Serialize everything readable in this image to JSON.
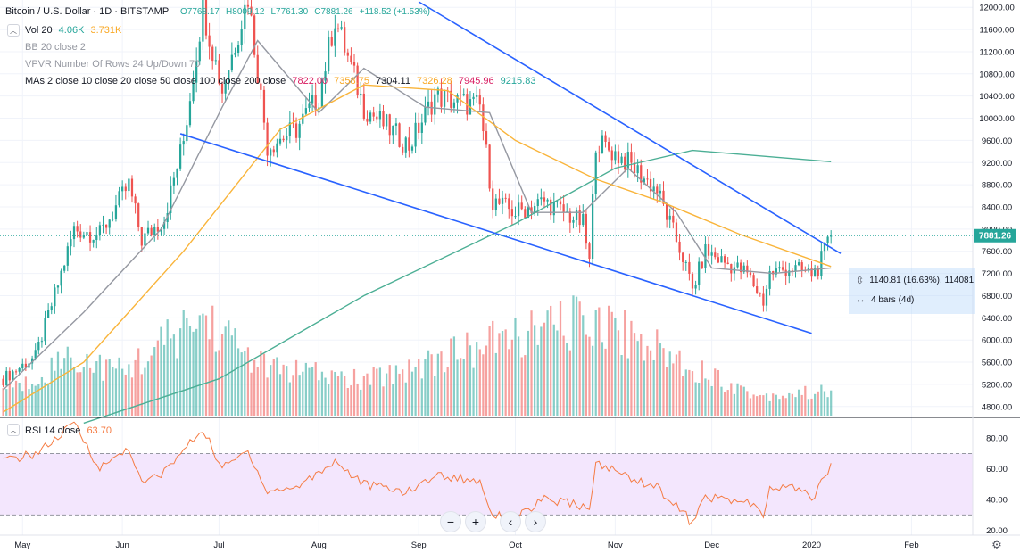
{
  "header": {
    "symbol": "Bitcoin / U.S. Dollar · 1D · BITSTAMP",
    "open": "O7768.17",
    "high": "H8009.12",
    "low": "L7761.30",
    "close": "C7881.26",
    "change": "+118.52 (+1.53%)"
  },
  "indicators": {
    "vol": {
      "label": "Vol 20",
      "v1": "4.06K",
      "v2": "3.731K"
    },
    "bb": {
      "label": "BB 20 close 2"
    },
    "vpvr": {
      "label": "VPVR Number Of Rows 24 Up/Down 70"
    },
    "mas": {
      "label": "MAs 2 close 10 close 20 close 50 close 100 close 200 close",
      "values": [
        "7822.00",
        "7358.75",
        "7304.11",
        "7326.28",
        "7945.96",
        "9215.83"
      ]
    },
    "rsi": {
      "label": "RSI 14 close",
      "value": "63.70"
    }
  },
  "price_axis": {
    "ticks": [
      "12000.00",
      "11600.00",
      "11200.00",
      "10800.00",
      "10400.00",
      "10000.00",
      "9600.00",
      "9200.00",
      "8800.00",
      "8400.00",
      "8000.00",
      "7600.00",
      "7200.00",
      "6800.00",
      "6400.00",
      "6000.00",
      "5600.00",
      "5200.00",
      "4800.00"
    ],
    "last_price": "7881.26"
  },
  "rsi_axis": {
    "ticks": [
      "80.00",
      "60.00",
      "40.00",
      "20.00"
    ]
  },
  "time_axis": {
    "ticks": [
      "May",
      "Jun",
      "Jul",
      "Aug",
      "Sep",
      "Oct",
      "Nov",
      "Dec",
      "2020",
      "Feb"
    ]
  },
  "measure": {
    "line1": "1140.81 (16.63%), 114081",
    "line2": "4 bars (4d)"
  },
  "nav": {
    "zoom_out": "−",
    "zoom_in": "+",
    "back": "‹",
    "forward": "›"
  },
  "colors": {
    "up": "#26a69a",
    "down": "#ef5350",
    "trend": "#2962ff",
    "ma_gray": "#9598a1",
    "ma_orange": "#f9b43a",
    "ma_teal": "#4caf95",
    "rsi": "#f57c44",
    "rsi_band": "#f3e6fd"
  },
  "chart_data": {
    "type": "candlestick",
    "symbol": "Bitcoin / U.S. Dollar",
    "interval": "1D",
    "x_range": [
      "2019-04-24",
      "2020-02-20"
    ],
    "ylim": [
      4700,
      12100
    ],
    "last_close": 7881.26,
    "price_path": [
      {
        "date": "2019-04-25",
        "close": 5300
      },
      {
        "date": "2019-05-05",
        "close": 5700
      },
      {
        "date": "2019-05-12",
        "close": 7000
      },
      {
        "date": "2019-05-17",
        "close": 8000
      },
      {
        "date": "2019-05-25",
        "close": 7900
      },
      {
        "date": "2019-06-03",
        "close": 8800
      },
      {
        "date": "2019-06-07",
        "close": 7800
      },
      {
        "date": "2019-06-14",
        "close": 8200
      },
      {
        "date": "2019-06-20",
        "close": 9600
      },
      {
        "date": "2019-06-26",
        "close": 12000
      },
      {
        "date": "2019-07-02",
        "close": 10500
      },
      {
        "date": "2019-07-10",
        "close": 12200
      },
      {
        "date": "2019-07-16",
        "close": 9500
      },
      {
        "date": "2019-07-25",
        "close": 9800
      },
      {
        "date": "2019-08-01",
        "close": 10400
      },
      {
        "date": "2019-08-06",
        "close": 11800
      },
      {
        "date": "2019-08-15",
        "close": 10200
      },
      {
        "date": "2019-08-29",
        "close": 9500
      },
      {
        "date": "2019-09-06",
        "close": 10400
      },
      {
        "date": "2019-09-20",
        "close": 10200
      },
      {
        "date": "2019-09-24",
        "close": 8500
      },
      {
        "date": "2019-10-01",
        "close": 8300
      },
      {
        "date": "2019-10-10",
        "close": 8500
      },
      {
        "date": "2019-10-22",
        "close": 8100
      },
      {
        "date": "2019-10-24",
        "close": 7400
      },
      {
        "date": "2019-10-26",
        "close": 9600
      },
      {
        "date": "2019-11-05",
        "close": 9200
      },
      {
        "date": "2019-11-14",
        "close": 8700
      },
      {
        "date": "2019-11-22",
        "close": 7500
      },
      {
        "date": "2019-11-25",
        "close": 6900
      },
      {
        "date": "2019-11-29",
        "close": 7600
      },
      {
        "date": "2019-12-05",
        "close": 7400
      },
      {
        "date": "2019-12-12",
        "close": 7200
      },
      {
        "date": "2019-12-17",
        "close": 6700
      },
      {
        "date": "2019-12-19",
        "close": 7200
      },
      {
        "date": "2019-12-25",
        "close": 7300
      },
      {
        "date": "2020-01-01",
        "close": 7200
      },
      {
        "date": "2020-01-03",
        "close": 7300
      },
      {
        "date": "2020-01-07",
        "close": 7881
      }
    ],
    "moving_averages": [
      {
        "period": 20,
        "path": [
          {
            "date": "2019-04-25",
            "value": 5100
          },
          {
            "date": "2019-05-20",
            "value": 6500
          },
          {
            "date": "2019-06-13",
            "value": 8000
          },
          {
            "date": "2019-07-02",
            "value": 10200
          },
          {
            "date": "2019-07-13",
            "value": 11400
          },
          {
            "date": "2019-08-01",
            "value": 10100
          },
          {
            "date": "2019-08-15",
            "value": 10900
          },
          {
            "date": "2019-09-03",
            "value": 10200
          },
          {
            "date": "2019-09-23",
            "value": 10100
          },
          {
            "date": "2019-10-06",
            "value": 8300
          },
          {
            "date": "2019-10-22",
            "value": 8300
          },
          {
            "date": "2019-11-05",
            "value": 9100
          },
          {
            "date": "2019-11-20",
            "value": 8300
          },
          {
            "date": "2019-12-01",
            "value": 7300
          },
          {
            "date": "2019-12-20",
            "value": 7200
          },
          {
            "date": "2020-01-07",
            "value": 7300
          }
        ]
      },
      {
        "period": 50,
        "path": [
          {
            "date": "2019-04-25",
            "value": 4700
          },
          {
            "date": "2019-05-20",
            "value": 5600
          },
          {
            "date": "2019-06-20",
            "value": 7600
          },
          {
            "date": "2019-07-20",
            "value": 9800
          },
          {
            "date": "2019-08-15",
            "value": 10600
          },
          {
            "date": "2019-09-10",
            "value": 10500
          },
          {
            "date": "2019-10-01",
            "value": 9600
          },
          {
            "date": "2019-10-26",
            "value": 8900
          },
          {
            "date": "2019-11-15",
            "value": 8500
          },
          {
            "date": "2019-12-10",
            "value": 7900
          },
          {
            "date": "2020-01-07",
            "value": 7326
          }
        ]
      },
      {
        "period": 200,
        "path": [
          {
            "date": "2019-05-20",
            "value": 4500
          },
          {
            "date": "2019-07-01",
            "value": 5300
          },
          {
            "date": "2019-08-15",
            "value": 6800
          },
          {
            "date": "2019-10-01",
            "value": 8100
          },
          {
            "date": "2019-11-01",
            "value": 9100
          },
          {
            "date": "2019-11-25",
            "value": 9420
          },
          {
            "date": "2020-01-07",
            "value": 9216
          }
        ]
      }
    ],
    "trendlines": [
      {
        "from": {
          "date": "2019-09-01",
          "price": 12100
        },
        "to": {
          "date": "2020-01-10",
          "price": 7560
        }
      },
      {
        "from": {
          "date": "2019-06-19",
          "price": 9720
        },
        "to": {
          "date": "2020-01-01",
          "price": 6120
        }
      }
    ],
    "volume_path": [
      {
        "date": "2019-05-01",
        "value": 0.3
      },
      {
        "date": "2019-05-15",
        "value": 0.6
      },
      {
        "date": "2019-06-01",
        "value": 0.45
      },
      {
        "date": "2019-06-26",
        "value": 1.0
      },
      {
        "date": "2019-07-15",
        "value": 0.5
      },
      {
        "date": "2019-08-15",
        "value": 0.35
      },
      {
        "date": "2019-09-24",
        "value": 0.75
      },
      {
        "date": "2019-10-26",
        "value": 1.0
      },
      {
        "date": "2019-11-25",
        "value": 0.5
      },
      {
        "date": "2019-12-15",
        "value": 0.2
      },
      {
        "date": "2020-01-07",
        "value": 0.25
      }
    ],
    "rsi": {
      "period": 14,
      "overbought": 70,
      "oversold": 30,
      "ylim": [
        18,
        90
      ],
      "path": [
        {
          "date": "2019-04-25",
          "value": 65
        },
        {
          "date": "2019-05-05",
          "value": 70
        },
        {
          "date": "2019-05-12",
          "value": 80
        },
        {
          "date": "2019-05-17",
          "value": 90
        },
        {
          "date": "2019-05-25",
          "value": 60
        },
        {
          "date": "2019-06-03",
          "value": 74
        },
        {
          "date": "2019-06-07",
          "value": 50
        },
        {
          "date": "2019-06-14",
          "value": 58
        },
        {
          "date": "2019-06-26",
          "value": 86
        },
        {
          "date": "2019-07-02",
          "value": 60
        },
        {
          "date": "2019-07-10",
          "value": 72
        },
        {
          "date": "2019-07-16",
          "value": 45
        },
        {
          "date": "2019-07-25",
          "value": 48
        },
        {
          "date": "2019-08-06",
          "value": 65
        },
        {
          "date": "2019-08-15",
          "value": 50
        },
        {
          "date": "2019-08-29",
          "value": 45
        },
        {
          "date": "2019-09-06",
          "value": 56
        },
        {
          "date": "2019-09-20",
          "value": 52
        },
        {
          "date": "2019-09-24",
          "value": 30
        },
        {
          "date": "2019-10-01",
          "value": 28
        },
        {
          "date": "2019-10-10",
          "value": 40
        },
        {
          "date": "2019-10-22",
          "value": 36
        },
        {
          "date": "2019-10-24",
          "value": 31
        },
        {
          "date": "2019-10-26",
          "value": 64
        },
        {
          "date": "2019-11-05",
          "value": 55
        },
        {
          "date": "2019-11-14",
          "value": 48
        },
        {
          "date": "2019-11-22",
          "value": 32
        },
        {
          "date": "2019-11-25",
          "value": 24
        },
        {
          "date": "2019-11-29",
          "value": 42
        },
        {
          "date": "2019-12-05",
          "value": 40
        },
        {
          "date": "2019-12-12",
          "value": 38
        },
        {
          "date": "2019-12-17",
          "value": 30
        },
        {
          "date": "2019-12-19",
          "value": 46
        },
        {
          "date": "2019-12-25",
          "value": 49
        },
        {
          "date": "2020-01-01",
          "value": 42
        },
        {
          "date": "2020-01-03",
          "value": 46
        },
        {
          "date": "2020-01-07",
          "value": 63.7
        }
      ]
    }
  }
}
